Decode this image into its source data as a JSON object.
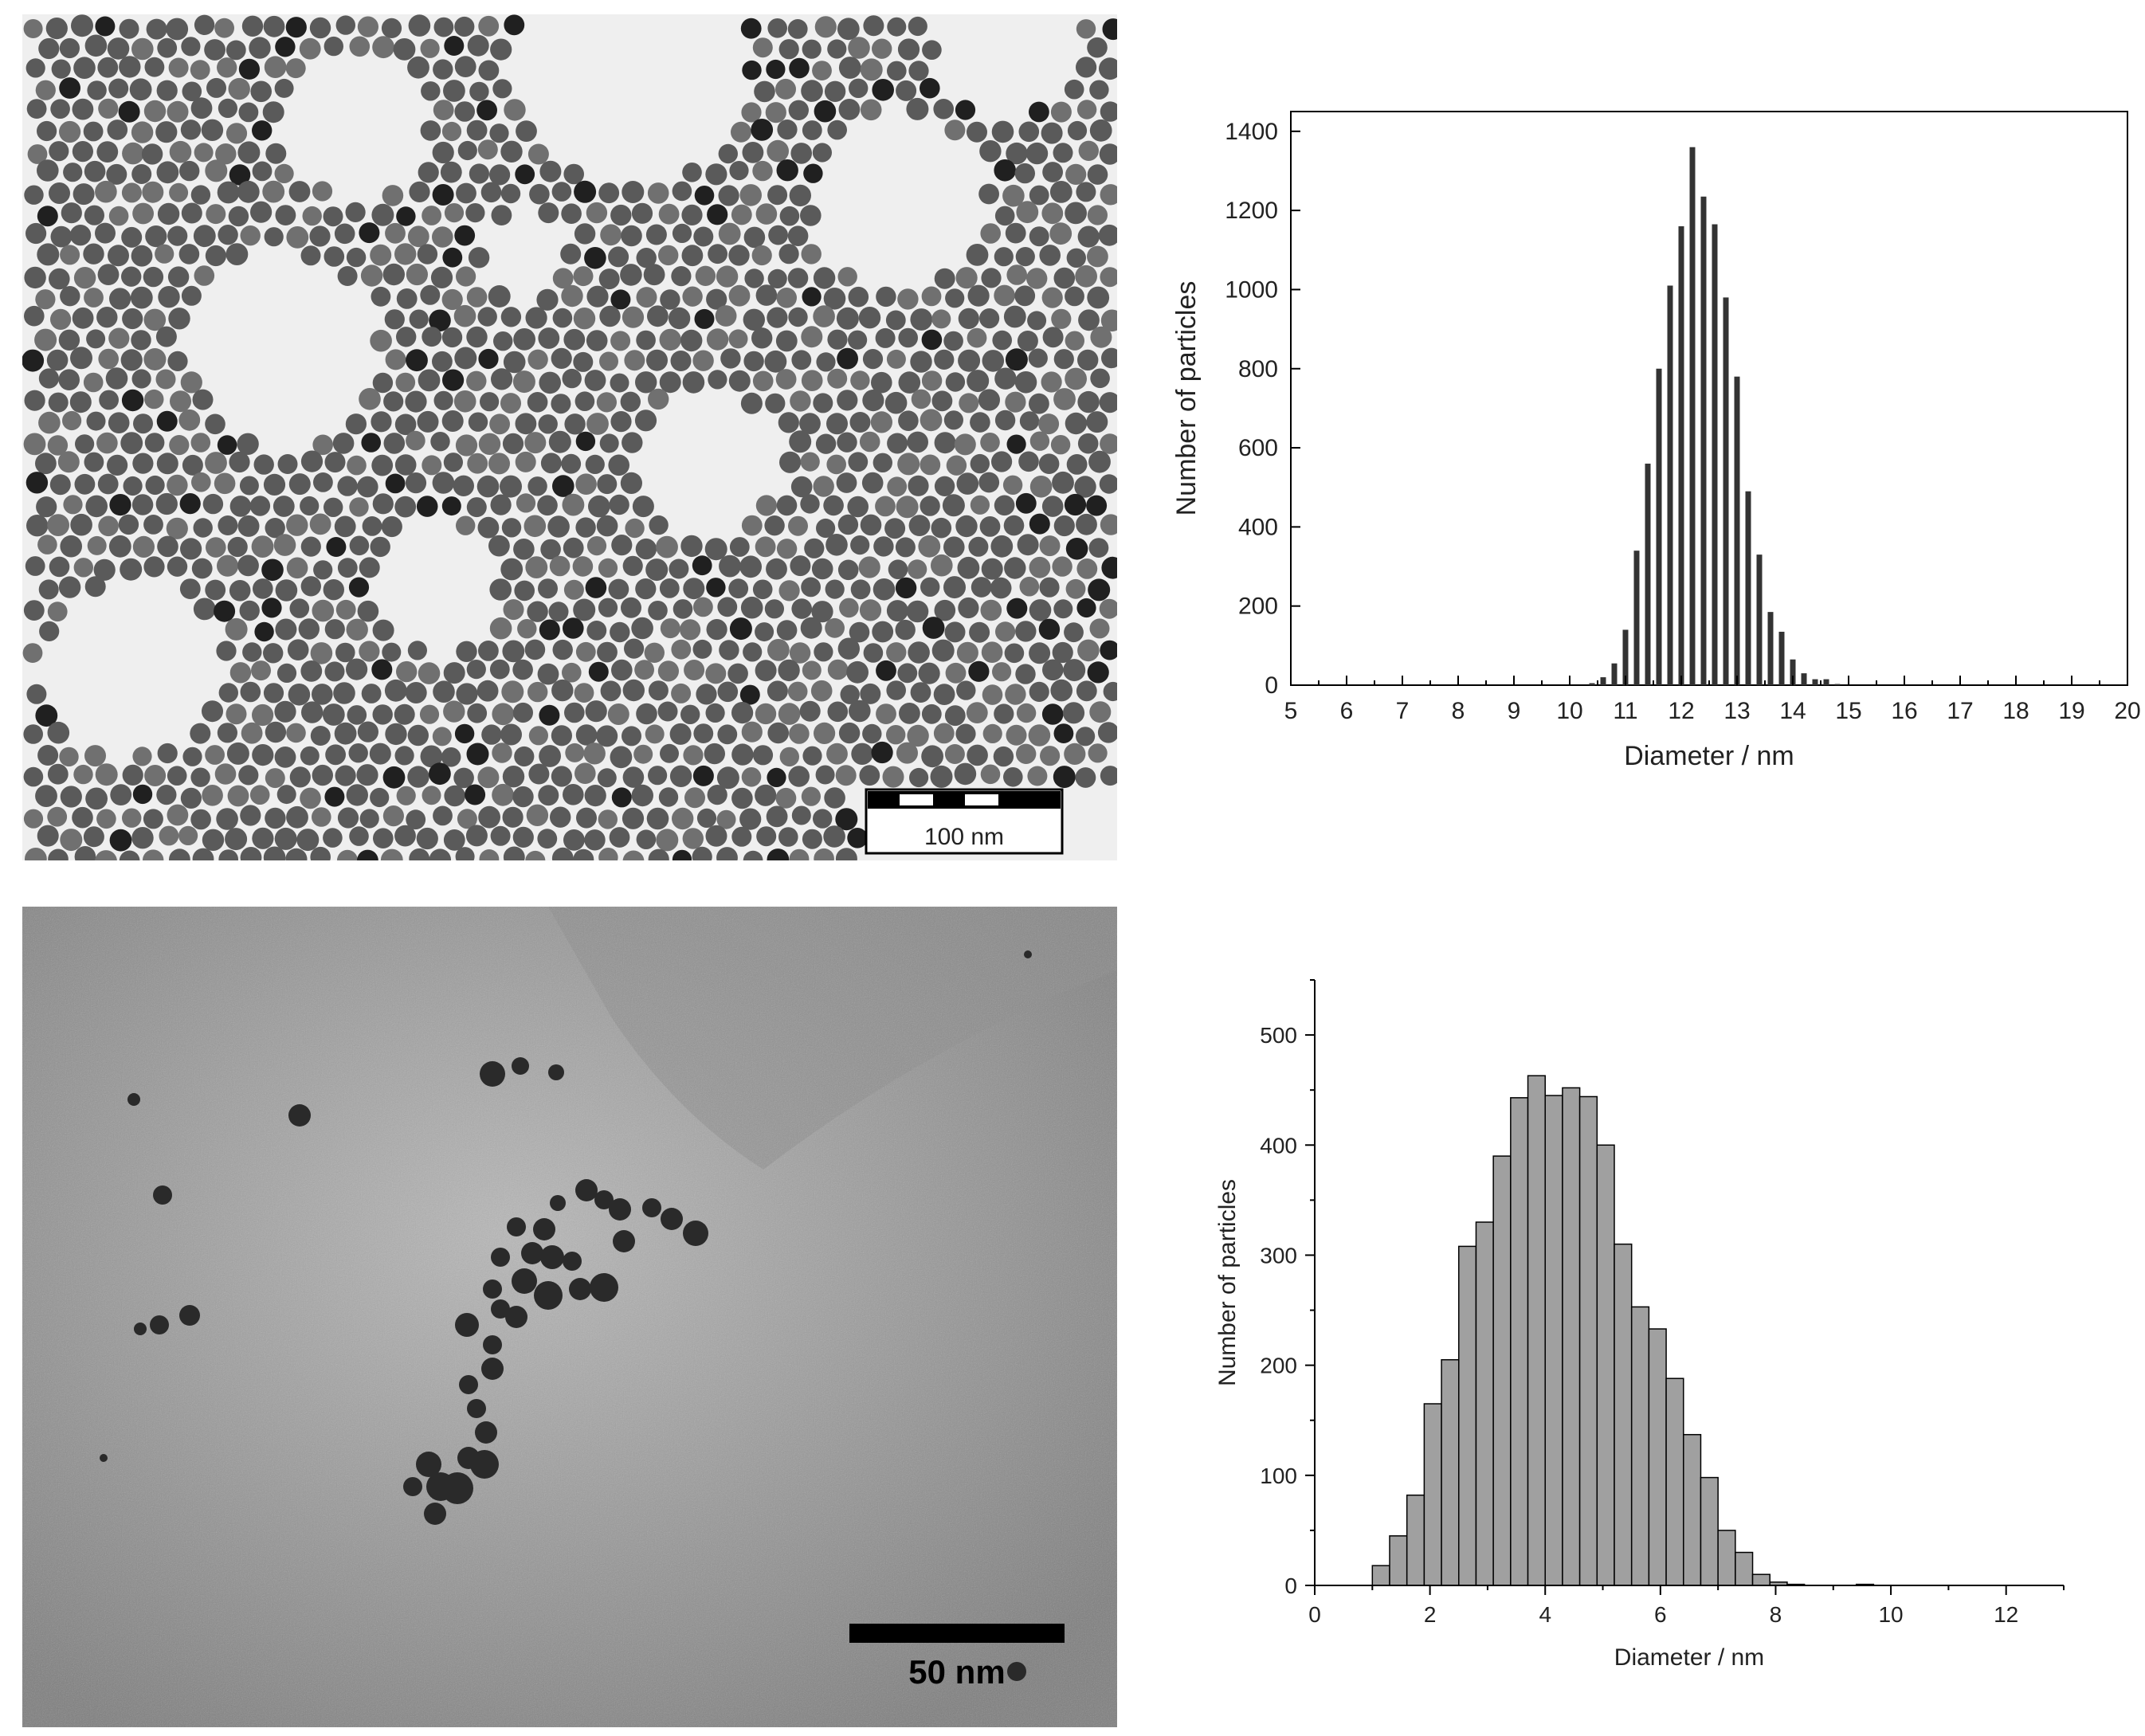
{
  "tem_images": [
    {
      "scale_bar_label": "100 nm",
      "background_color": "#efefef",
      "particle_color": "#5a5a5a"
    },
    {
      "scale_bar_label": "50 nm",
      "background_color": "#9a9a9a",
      "particle_color": "#2a2a2a"
    }
  ],
  "chart_data": [
    {
      "type": "bar",
      "xlabel": "Diameter / nm",
      "ylabel": "Number of particles",
      "xlim": [
        5,
        20
      ],
      "ylim": [
        0,
        1400
      ],
      "xticks": [
        5,
        6,
        7,
        8,
        9,
        10,
        11,
        12,
        13,
        14,
        15,
        16,
        17,
        18,
        19,
        20
      ],
      "yticks": [
        0,
        200,
        400,
        600,
        800,
        1000,
        1200,
        1400
      ],
      "bin_width": 0.1,
      "bar_color": "#333333",
      "bars": [
        {
          "x": 10.4,
          "y": 5
        },
        {
          "x": 10.6,
          "y": 20
        },
        {
          "x": 10.8,
          "y": 55
        },
        {
          "x": 11.0,
          "y": 140
        },
        {
          "x": 11.2,
          "y": 340
        },
        {
          "x": 11.4,
          "y": 560
        },
        {
          "x": 11.6,
          "y": 800
        },
        {
          "x": 11.8,
          "y": 1010
        },
        {
          "x": 12.0,
          "y": 1160
        },
        {
          "x": 12.2,
          "y": 1360
        },
        {
          "x": 12.4,
          "y": 1235
        },
        {
          "x": 12.6,
          "y": 1165
        },
        {
          "x": 12.8,
          "y": 980
        },
        {
          "x": 13.0,
          "y": 780
        },
        {
          "x": 13.2,
          "y": 490
        },
        {
          "x": 13.4,
          "y": 330
        },
        {
          "x": 13.6,
          "y": 185
        },
        {
          "x": 13.8,
          "y": 135
        },
        {
          "x": 14.0,
          "y": 65
        },
        {
          "x": 14.2,
          "y": 30
        },
        {
          "x": 14.4,
          "y": 15
        },
        {
          "x": 14.6,
          "y": 15
        },
        {
          "x": 14.8,
          "y": 3
        }
      ]
    },
    {
      "type": "bar",
      "xlabel": "Diameter / nm",
      "ylabel": "Number of particles",
      "xlim": [
        0,
        13
      ],
      "ylim": [
        0,
        550
      ],
      "xticks": [
        0,
        2,
        4,
        6,
        8,
        10,
        12
      ],
      "yticks": [
        0,
        100,
        200,
        300,
        400,
        500
      ],
      "bin_width": 0.3,
      "bar_color": "#a0a0a0",
      "bars": [
        {
          "x": 1.0,
          "y": 18
        },
        {
          "x": 1.3,
          "y": 45
        },
        {
          "x": 1.6,
          "y": 82
        },
        {
          "x": 1.9,
          "y": 165
        },
        {
          "x": 2.2,
          "y": 205
        },
        {
          "x": 2.5,
          "y": 308
        },
        {
          "x": 2.8,
          "y": 330
        },
        {
          "x": 3.1,
          "y": 390
        },
        {
          "x": 3.4,
          "y": 443
        },
        {
          "x": 3.7,
          "y": 463
        },
        {
          "x": 4.0,
          "y": 445
        },
        {
          "x": 4.3,
          "y": 452
        },
        {
          "x": 4.6,
          "y": 444
        },
        {
          "x": 4.9,
          "y": 400
        },
        {
          "x": 5.2,
          "y": 310
        },
        {
          "x": 5.5,
          "y": 253
        },
        {
          "x": 5.8,
          "y": 233
        },
        {
          "x": 6.1,
          "y": 188
        },
        {
          "x": 6.4,
          "y": 137
        },
        {
          "x": 6.7,
          "y": 98
        },
        {
          "x": 7.0,
          "y": 50
        },
        {
          "x": 7.3,
          "y": 30
        },
        {
          "x": 7.6,
          "y": 10
        },
        {
          "x": 7.9,
          "y": 3
        },
        {
          "x": 8.2,
          "y": 1
        },
        {
          "x": 9.4,
          "y": 1
        }
      ]
    }
  ]
}
